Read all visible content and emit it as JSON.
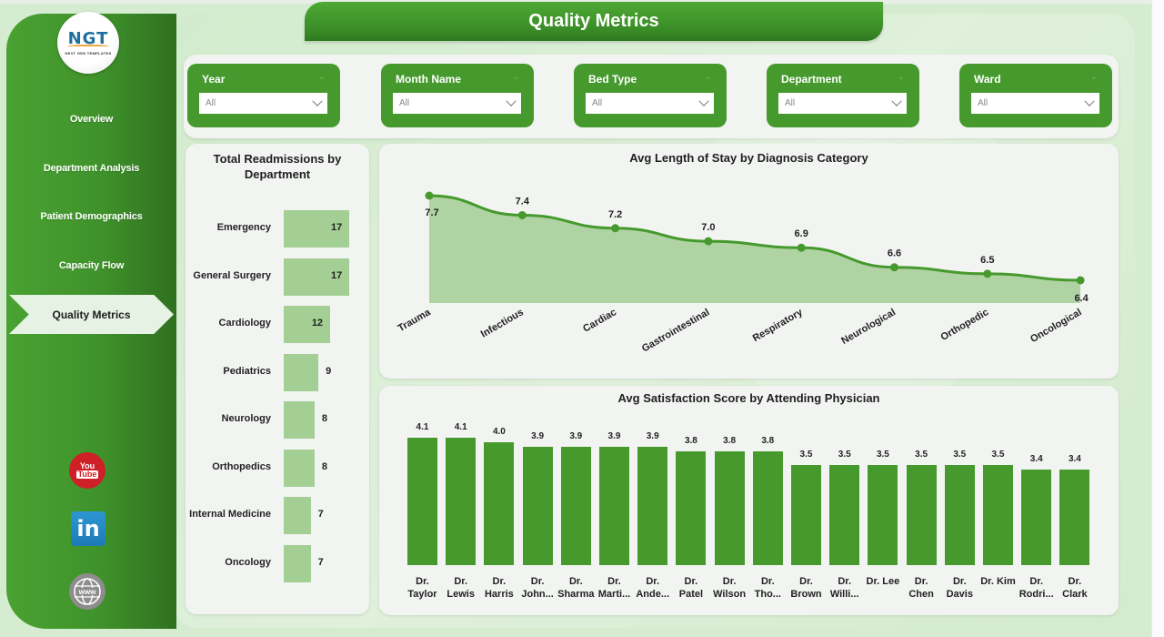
{
  "header": {
    "title": "Quality Metrics"
  },
  "logo": {
    "text": "NGT",
    "subtitle": "NEXT GEN TEMPLATES"
  },
  "sidebar": {
    "items": [
      {
        "label": "Overview",
        "active": false
      },
      {
        "label": "Department Analysis",
        "active": false
      },
      {
        "label": "Patient Demographics",
        "active": false
      },
      {
        "label": "Capacity Flow",
        "active": false
      },
      {
        "label": "Quality Metrics",
        "active": true
      }
    ],
    "social": [
      {
        "name": "youtube-icon",
        "text_top": "You",
        "text_bottom": "Tube"
      },
      {
        "name": "linkedin-icon",
        "text": "in"
      },
      {
        "name": "globe-www-icon",
        "text": "www"
      }
    ]
  },
  "filters": [
    {
      "label": "Year",
      "value": "All"
    },
    {
      "label": "Month Name",
      "value": "All"
    },
    {
      "label": "Bed Type",
      "value": "All"
    },
    {
      "label": "Department",
      "value": "All"
    },
    {
      "label": "Ward",
      "value": "All"
    }
  ],
  "colors": {
    "primary_green": "#469a2d",
    "light_bar_green": "#a3cf95",
    "area_fill": "#acd19f",
    "panel_bg": "#f2f4f2",
    "canvas_bg": "#d5ecd0"
  },
  "chart_data": [
    {
      "type": "bar",
      "orientation": "horizontal",
      "title": "Total Readmissions by Department",
      "categories": [
        "Emergency",
        "General Surgery",
        "Cardiology",
        "Pediatrics",
        "Neurology",
        "Orthopedics",
        "Internal Medicine",
        "Oncology"
      ],
      "values": [
        17,
        17,
        12,
        9,
        8,
        8,
        7,
        7
      ],
      "xlabel": "",
      "ylabel": "",
      "grid": false,
      "legend": "none"
    },
    {
      "type": "area",
      "title": "Avg Length of Stay by Diagnosis Category",
      "categories": [
        "Trauma",
        "Infectious",
        "Cardiac",
        "Gastrointestinal",
        "Respiratory",
        "Neurological",
        "Orthopedic",
        "Oncological"
      ],
      "values": [
        7.7,
        7.4,
        7.2,
        7.0,
        6.9,
        6.6,
        6.5,
        6.4
      ],
      "labels": [
        "7.7",
        "7.4",
        "7.2",
        "7.0",
        "6.9",
        "6.6",
        "6.5",
        "6.4"
      ],
      "xlabel": "",
      "ylabel": "",
      "grid": false,
      "legend": "none"
    },
    {
      "type": "bar",
      "orientation": "vertical",
      "title": "Avg Satisfaction Score by Attending Physician",
      "categories": [
        "Dr. Taylor",
        "Dr. Lewis",
        "Dr. Harris",
        "Dr. John...",
        "Dr. Sharma",
        "Dr. Marti...",
        "Dr. Ande...",
        "Dr. Patel",
        "Dr. Wilson",
        "Dr. Tho...",
        "Dr. Brown",
        "Dr. Willi...",
        "Dr. Lee",
        "Dr. Chen",
        "Dr. Davis",
        "Dr. Kim",
        "Dr. Rodri...",
        "Dr. Clark"
      ],
      "values": [
        4.1,
        4.1,
        4.0,
        3.9,
        3.9,
        3.9,
        3.9,
        3.8,
        3.8,
        3.8,
        3.5,
        3.5,
        3.5,
        3.5,
        3.5,
        3.5,
        3.4,
        3.4
      ],
      "labels": [
        "4.1",
        "4.1",
        "4.0",
        "3.9",
        "3.9",
        "3.9",
        "3.9",
        "3.8",
        "3.8",
        "3.8",
        "3.5",
        "3.5",
        "3.5",
        "3.5",
        "3.5",
        "3.5",
        "3.4",
        "3.4"
      ],
      "label_lines": [
        [
          "Dr.",
          "Taylor"
        ],
        [
          "Dr.",
          "Lewis"
        ],
        [
          "Dr.",
          "Harris"
        ],
        [
          "Dr.",
          "John..."
        ],
        [
          "Dr.",
          "Sharma"
        ],
        [
          "Dr.",
          "Marti..."
        ],
        [
          "Dr.",
          "Ande..."
        ],
        [
          "Dr.",
          "Patel"
        ],
        [
          "Dr.",
          "Wilson"
        ],
        [
          "Dr.",
          "Tho..."
        ],
        [
          "Dr.",
          "Brown"
        ],
        [
          "Dr.",
          "Willi..."
        ],
        [
          "Dr. Lee",
          ""
        ],
        [
          "Dr.",
          "Chen"
        ],
        [
          "Dr.",
          "Davis"
        ],
        [
          "Dr. Kim",
          ""
        ],
        [
          "Dr.",
          "Rodri..."
        ],
        [
          "Dr.",
          "Clark"
        ]
      ],
      "xlabel": "",
      "ylabel": "",
      "grid": false,
      "legend": "none"
    }
  ]
}
